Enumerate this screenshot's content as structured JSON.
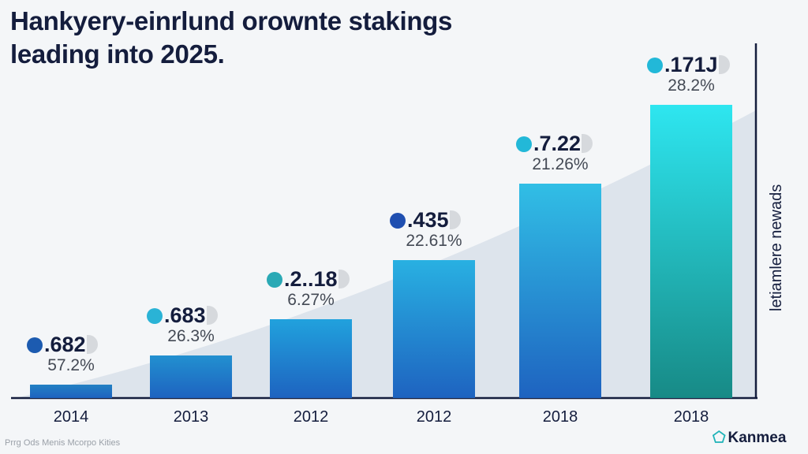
{
  "chart_data": {
    "type": "bar",
    "title": "Hankyery-einrlund orownte stakings leading into 2025.",
    "title_lines": [
      "Hankyery-einrlund orownte stakings",
      "leading into 2025."
    ],
    "categories": [
      "2014",
      "2013",
      "2012",
      "2012",
      "2018",
      "2018"
    ],
    "values": [
      0.046,
      0.145,
      0.27,
      0.47,
      0.73,
      1.0
    ],
    "value_labels": [
      ".682",
      ".683",
      ".2..18",
      ".435",
      ".7.22",
      ".171J"
    ],
    "percent_labels": [
      "57.2%",
      "26.3%",
      "6.27%",
      "22.61%",
      "21.26%",
      "28.2%"
    ],
    "label_icon_colors": [
      "#1c5bb0",
      "#2ab3d6",
      "#2aa9b5",
      "#1f4fb0",
      "#22b8d8",
      "#22b8d8"
    ],
    "ylabel": "letiamlere newads",
    "xlabel": "",
    "ylim": [
      0,
      1.0
    ],
    "grid": false,
    "colors": {
      "bar_bottom": "#1e63c0",
      "bar_top_start": "#2a8fd6",
      "last_top": "#2ee6f0",
      "last_bottom": "#178a86",
      "area": "#dde4ec"
    }
  },
  "footer": {
    "note": "Prrg Ods Menis Mcorpo Kities",
    "brand": "Kanmea"
  }
}
